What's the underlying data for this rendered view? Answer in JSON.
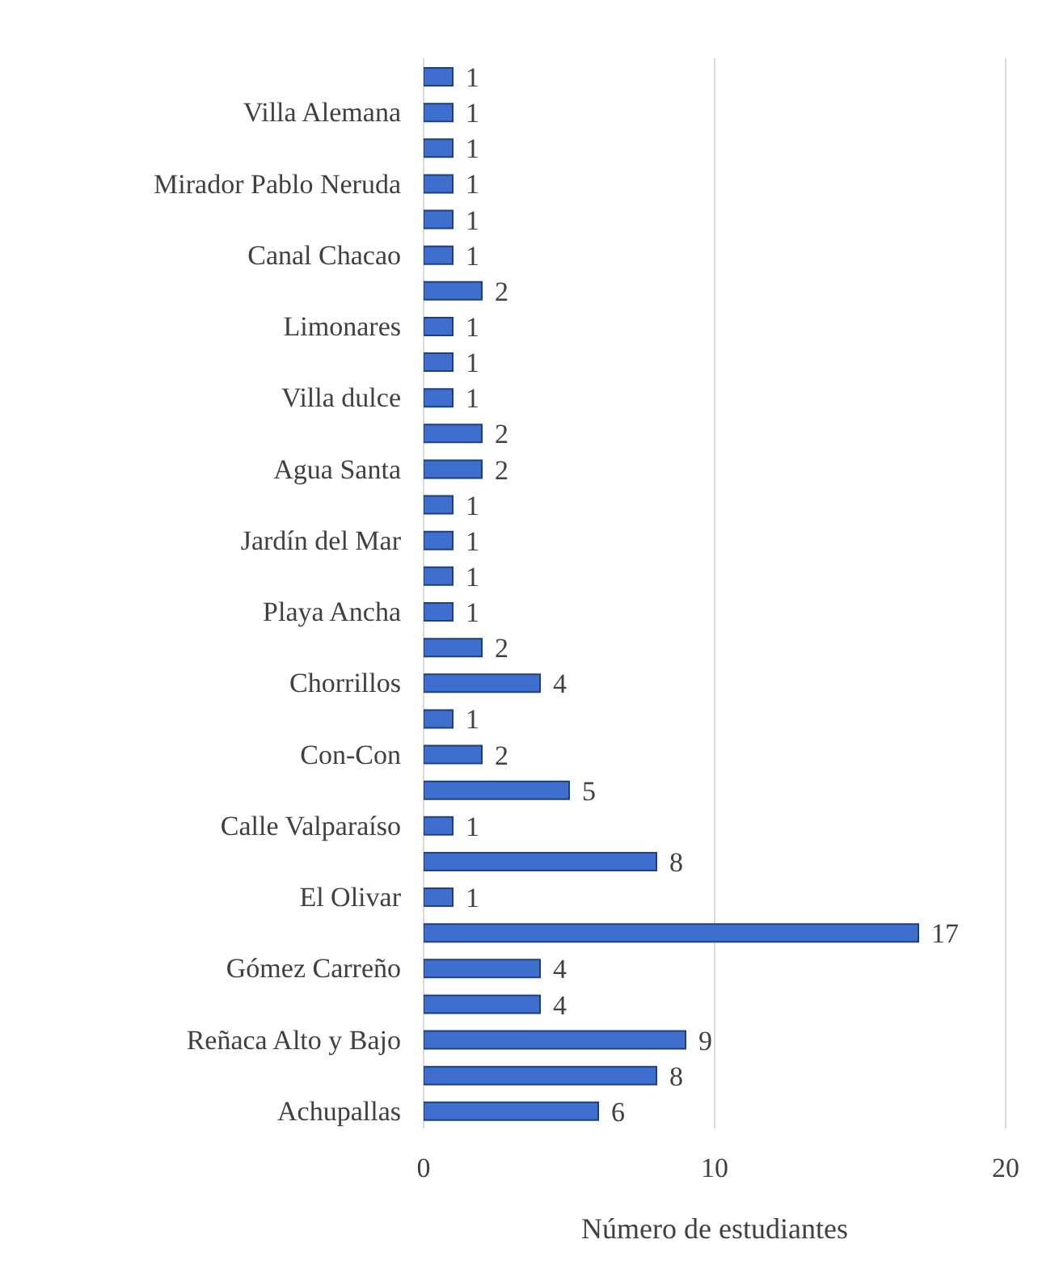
{
  "chart_data": {
    "type": "bar",
    "orientation": "horizontal",
    "xlabel": "Número de estudiantes",
    "categories": [
      null,
      "Villa Alemana",
      null,
      "Mirador Pablo Neruda",
      null,
      "Canal Chacao",
      null,
      "Limonares",
      null,
      "Villa dulce",
      null,
      "Agua Santa",
      null,
      "Jardín del Mar",
      null,
      "Playa Ancha",
      null,
      "Chorrillos",
      null,
      "Con-Con",
      null,
      "Calle Valparaíso",
      null,
      "El Olivar",
      null,
      "Gómez Carreño",
      null,
      "Reñaca Alto y Bajo",
      null,
      "Achupallas"
    ],
    "values": [
      1,
      1,
      1,
      1,
      1,
      1,
      2,
      1,
      1,
      1,
      2,
      2,
      1,
      1,
      1,
      1,
      2,
      4,
      1,
      2,
      5,
      1,
      8,
      1,
      17,
      4,
      4,
      9,
      8,
      6
    ],
    "color": "#3e6fcf",
    "xlim": [
      0,
      20
    ],
    "xticks": [
      0,
      10,
      20
    ],
    "grid": "x",
    "data_labels": true
  }
}
